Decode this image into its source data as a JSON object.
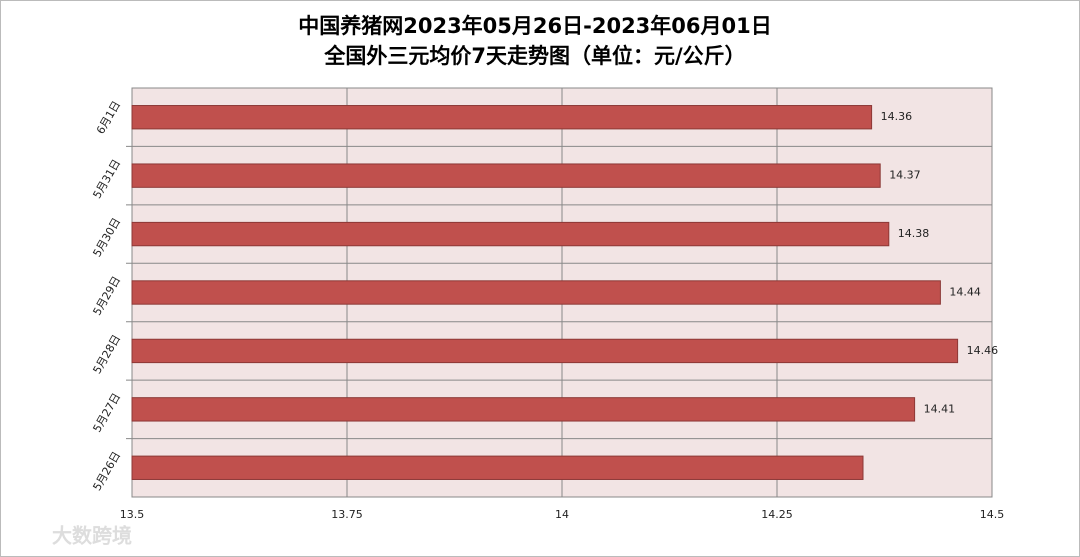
{
  "chart_data": {
    "type": "hbar",
    "title": "中国养猪网2023年05月26日-2023年06月01日",
    "subtitle": "全国外三元均价7天走势图（单位：元/公斤）",
    "categories": [
      "6月1日",
      "5月31日",
      "5月30日",
      "5月29日",
      "5月28日",
      "5月27日",
      "5月26日"
    ],
    "values": [
      14.36,
      14.37,
      14.38,
      14.44,
      14.46,
      14.41,
      14.35
    ],
    "value_labels": [
      "14.36",
      "14.37",
      "14.38",
      "14.44",
      "14.46",
      "14.41",
      null
    ],
    "color": "#c0504d",
    "xlim": [
      13.5,
      14.5
    ],
    "xticks": [
      13.5,
      13.75,
      14,
      14.25,
      14.5
    ],
    "grid": true,
    "watermark": "大数跨境"
  }
}
